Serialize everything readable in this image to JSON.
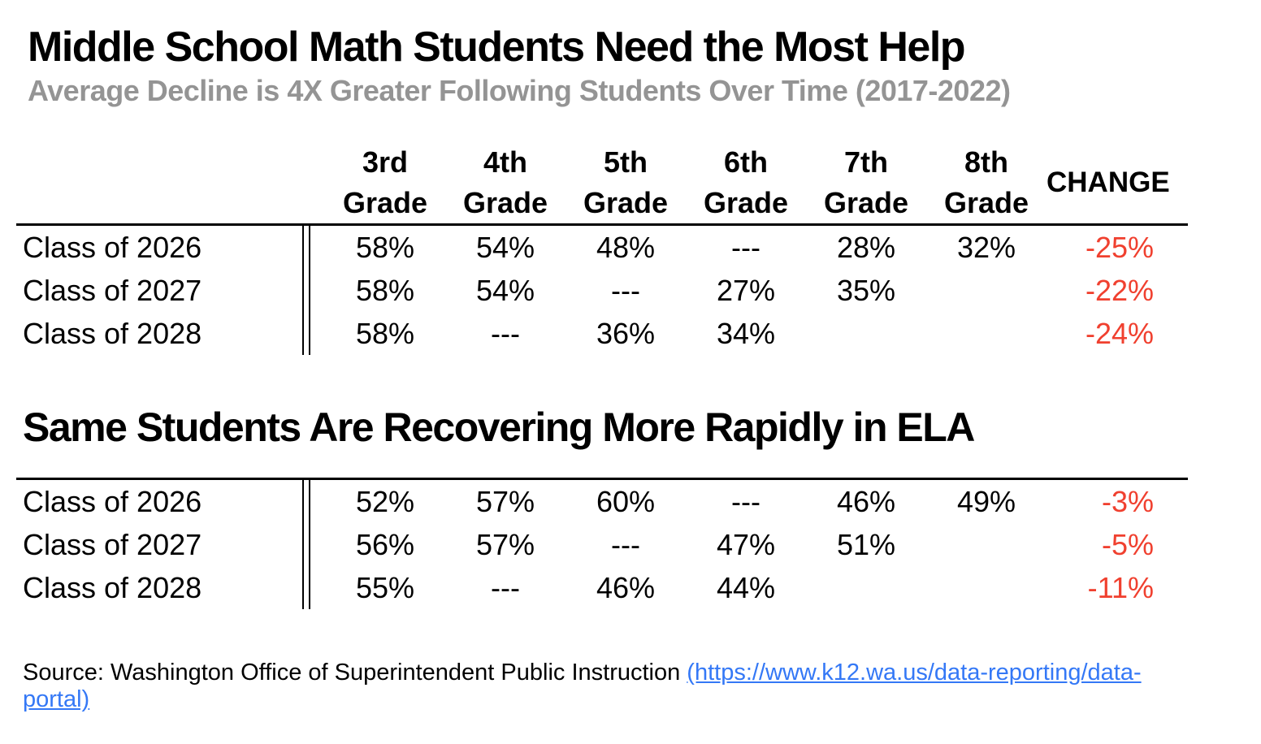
{
  "colors": {
    "text": "#000000",
    "subtitle_gray": "#949494",
    "change_red": "#f0402f",
    "link_blue": "#3478f6",
    "rule_black": "#000000"
  },
  "header_columns": [
    {
      "line1": "3rd",
      "line2": "Grade"
    },
    {
      "line1": "4th",
      "line2": "Grade"
    },
    {
      "line1": "5th",
      "line2": "Grade"
    },
    {
      "line1": "6th",
      "line2": "Grade"
    },
    {
      "line1": "7th",
      "line2": "Grade"
    },
    {
      "line1": "8th",
      "line2": "Grade"
    }
  ],
  "change_label": "CHANGE",
  "source": {
    "prefix": "Source: Washington Office of Superintendent Public Instruction ",
    "link_text": "(https://www.k12.wa.us/data-reporting/data-portal)",
    "link_href": "https://www.k12.wa.us/data-reporting/data-portal"
  },
  "chart_data": [
    {
      "type": "table",
      "subject": "Math",
      "title": "Middle School Math Students Need the Most Help",
      "subtitle": "Average Decline is 4X Greater Following Students Over Time (2017-2022)",
      "columns": [
        "3rd Grade",
        "4th Grade",
        "5th Grade",
        "6th Grade",
        "7th Grade",
        "8th Grade",
        "CHANGE"
      ],
      "rows": [
        {
          "label": "Class of 2026",
          "values": [
            "58%",
            "54%",
            "48%",
            "---",
            "28%",
            "32%"
          ],
          "change": "-25%"
        },
        {
          "label": "Class of 2027",
          "values": [
            "58%",
            "54%",
            "---",
            "27%",
            "35%",
            ""
          ],
          "change": "-22%"
        },
        {
          "label": "Class of 2028",
          "values": [
            "58%",
            "---",
            "36%",
            "34%",
            "",
            ""
          ],
          "change": "-24%"
        }
      ]
    },
    {
      "type": "table",
      "subject": "ELA",
      "title": "Same Students Are Recovering More Rapidly in ELA",
      "columns": [
        "3rd Grade",
        "4th Grade",
        "5th Grade",
        "6th Grade",
        "7th Grade",
        "8th Grade",
        "CHANGE"
      ],
      "rows": [
        {
          "label": "Class of 2026",
          "values": [
            "52%",
            "57%",
            "60%",
            "---",
            "46%",
            "49%"
          ],
          "change": "-3%"
        },
        {
          "label": "Class of 2027",
          "values": [
            "56%",
            "57%",
            "---",
            "47%",
            "51%",
            ""
          ],
          "change": "-5%"
        },
        {
          "label": "Class of 2028",
          "values": [
            "55%",
            "---",
            "46%",
            "44%",
            "",
            ""
          ],
          "change": "-11%"
        }
      ]
    }
  ]
}
